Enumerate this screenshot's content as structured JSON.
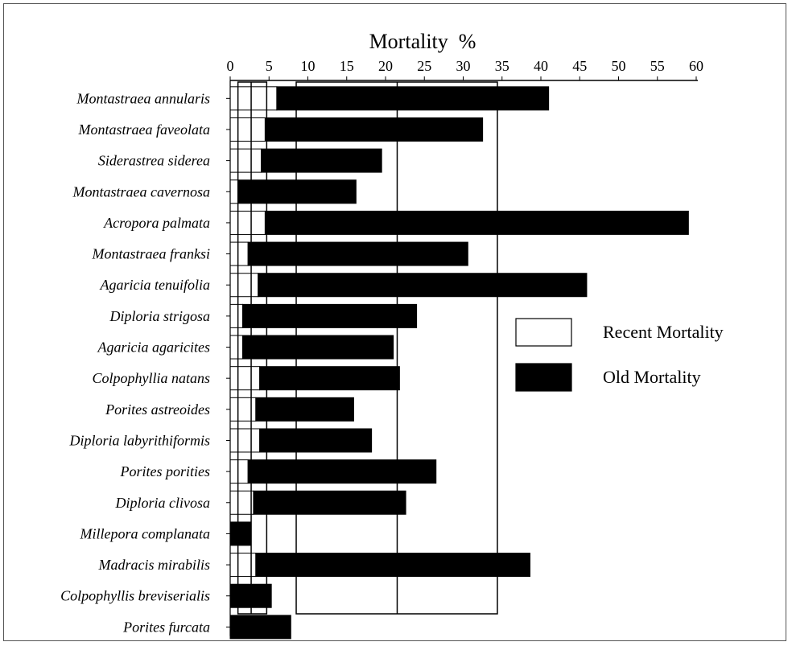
{
  "chart_data": {
    "type": "bar",
    "orientation": "horizontal",
    "stacked": true,
    "title": "",
    "xlabel": "Mortality  %",
    "ylabel": "",
    "xlim": [
      0,
      60
    ],
    "xticks": [
      0,
      5,
      10,
      15,
      20,
      25,
      30,
      35,
      40,
      45,
      50,
      55,
      60
    ],
    "grid": false,
    "legend_position": "right",
    "categories": [
      "Montastraea annularis",
      "Montastraea faveolata",
      "Siderastrea siderea",
      "Montastraea cavernosa",
      "Acropora palmata",
      "Montastraea franksi",
      "Agaricia tenuifolia",
      "Diploria strigosa",
      "Agaricia agaricites",
      "Colpophyllia natans",
      "Porites astreoides",
      "Diploria labyrithiformis",
      "Porites porities",
      "Diploria clivosa",
      "Millepora complanata",
      "Madracis mirabilis",
      "Colpophyllis breviserialis",
      "Porites furcata"
    ],
    "series": [
      {
        "name": "Recent Mortality",
        "color": "#ffffff",
        "values": [
          6,
          4.5,
          4,
          1,
          4.5,
          2.3,
          3.6,
          1.6,
          1.6,
          3.8,
          3.3,
          3.8,
          2.3,
          3,
          0,
          3.3,
          0,
          0
        ]
      },
      {
        "name": "Old Mortality",
        "color": "#000000",
        "values": [
          35,
          28,
          15.5,
          15.2,
          54.5,
          28.3,
          42.3,
          22.4,
          19.4,
          18,
          12.6,
          14.4,
          24.2,
          19.6,
          2.6,
          35.3,
          5.3,
          7.8
        ]
      }
    ]
  }
}
